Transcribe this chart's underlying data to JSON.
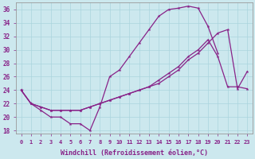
{
  "xlabel": "Windchill (Refroidissement éolien,°C)",
  "bg_color": "#cce8ee",
  "line_color": "#882288",
  "grid_color": "#aad4dd",
  "xlim": [
    -0.5,
    23.5
  ],
  "ylim": [
    17.5,
    37.0
  ],
  "yticks": [
    18,
    20,
    22,
    24,
    26,
    28,
    30,
    32,
    34,
    36
  ],
  "xticks": [
    0,
    1,
    2,
    3,
    4,
    5,
    6,
    7,
    8,
    9,
    10,
    11,
    12,
    13,
    14,
    15,
    16,
    17,
    18,
    19,
    20,
    21,
    22,
    23
  ],
  "line1_x": [
    0,
    1,
    2,
    3,
    4,
    5,
    6,
    7,
    8,
    9,
    10,
    11,
    12,
    13,
    14,
    15,
    16,
    17,
    18,
    19,
    20
  ],
  "line1_y": [
    24,
    22,
    21,
    20,
    20,
    19,
    19,
    18,
    21.5,
    26,
    27,
    29,
    31,
    33,
    35,
    36,
    36.2,
    36.5,
    36.2,
    33.5,
    29.5
  ],
  "line2_x": [
    0,
    1,
    2,
    3,
    4,
    5,
    6,
    7,
    8,
    9,
    10,
    11,
    12,
    13,
    14,
    15,
    16,
    17,
    18,
    19,
    20,
    21,
    22,
    23
  ],
  "line2_y": [
    24,
    22,
    21.5,
    21,
    21,
    21,
    21,
    21.5,
    22,
    22.5,
    23,
    23.5,
    24,
    24.5,
    25,
    26,
    27,
    28.5,
    29.5,
    31,
    32.5,
    33,
    24.2,
    26.8
  ],
  "line3_x": [
    0,
    1,
    2,
    3,
    4,
    5,
    6,
    7,
    8,
    9,
    10,
    11,
    12,
    13,
    14,
    15,
    16,
    17,
    18,
    19,
    20,
    21,
    22,
    23
  ],
  "line3_y": [
    24,
    22,
    21.5,
    21,
    21,
    21,
    21,
    21.5,
    22,
    22.5,
    23,
    23.5,
    24,
    24.5,
    25.5,
    26.5,
    27.5,
    29,
    30,
    31.5,
    29,
    24.5,
    24.5,
    24.2
  ]
}
